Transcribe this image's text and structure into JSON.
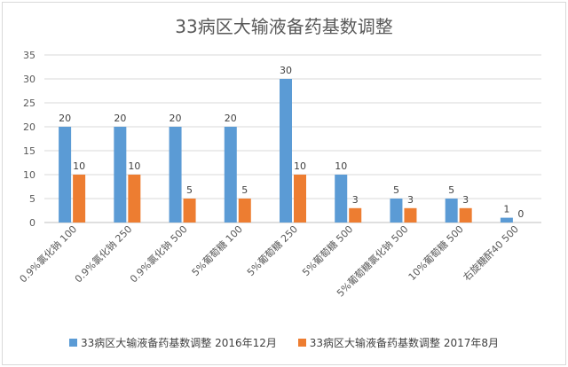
{
  "chart_data": {
    "type": "bar",
    "title": "33病区大输液备药基数调整",
    "categories": [
      "0.9%氯化钠 100",
      "0.9%氯化钠 250",
      "0.9%氯化钠 500",
      "5%葡萄糖 100",
      "5%葡萄糖 250",
      "5%葡萄糖 500",
      "5%葡萄糖氯化钠 500",
      "10%葡萄糖 500",
      "右旋糖酐40 500"
    ],
    "series": [
      {
        "name": "33病区大输液备药基数调整  2016年12月",
        "values": [
          20,
          20,
          20,
          20,
          30,
          10,
          5,
          5,
          1
        ],
        "color": "#5b9bd5"
      },
      {
        "name": "33病区大输液备药基数调整  2017年8月",
        "values": [
          10,
          10,
          5,
          5,
          10,
          3,
          3,
          3,
          0
        ],
        "color": "#ed7d31"
      }
    ],
    "ylim": [
      0,
      35
    ],
    "yticks": [
      0,
      5,
      10,
      15,
      20,
      25,
      30,
      35
    ],
    "grid": true,
    "legend": "bottom",
    "xlabel": "",
    "ylabel": ""
  }
}
